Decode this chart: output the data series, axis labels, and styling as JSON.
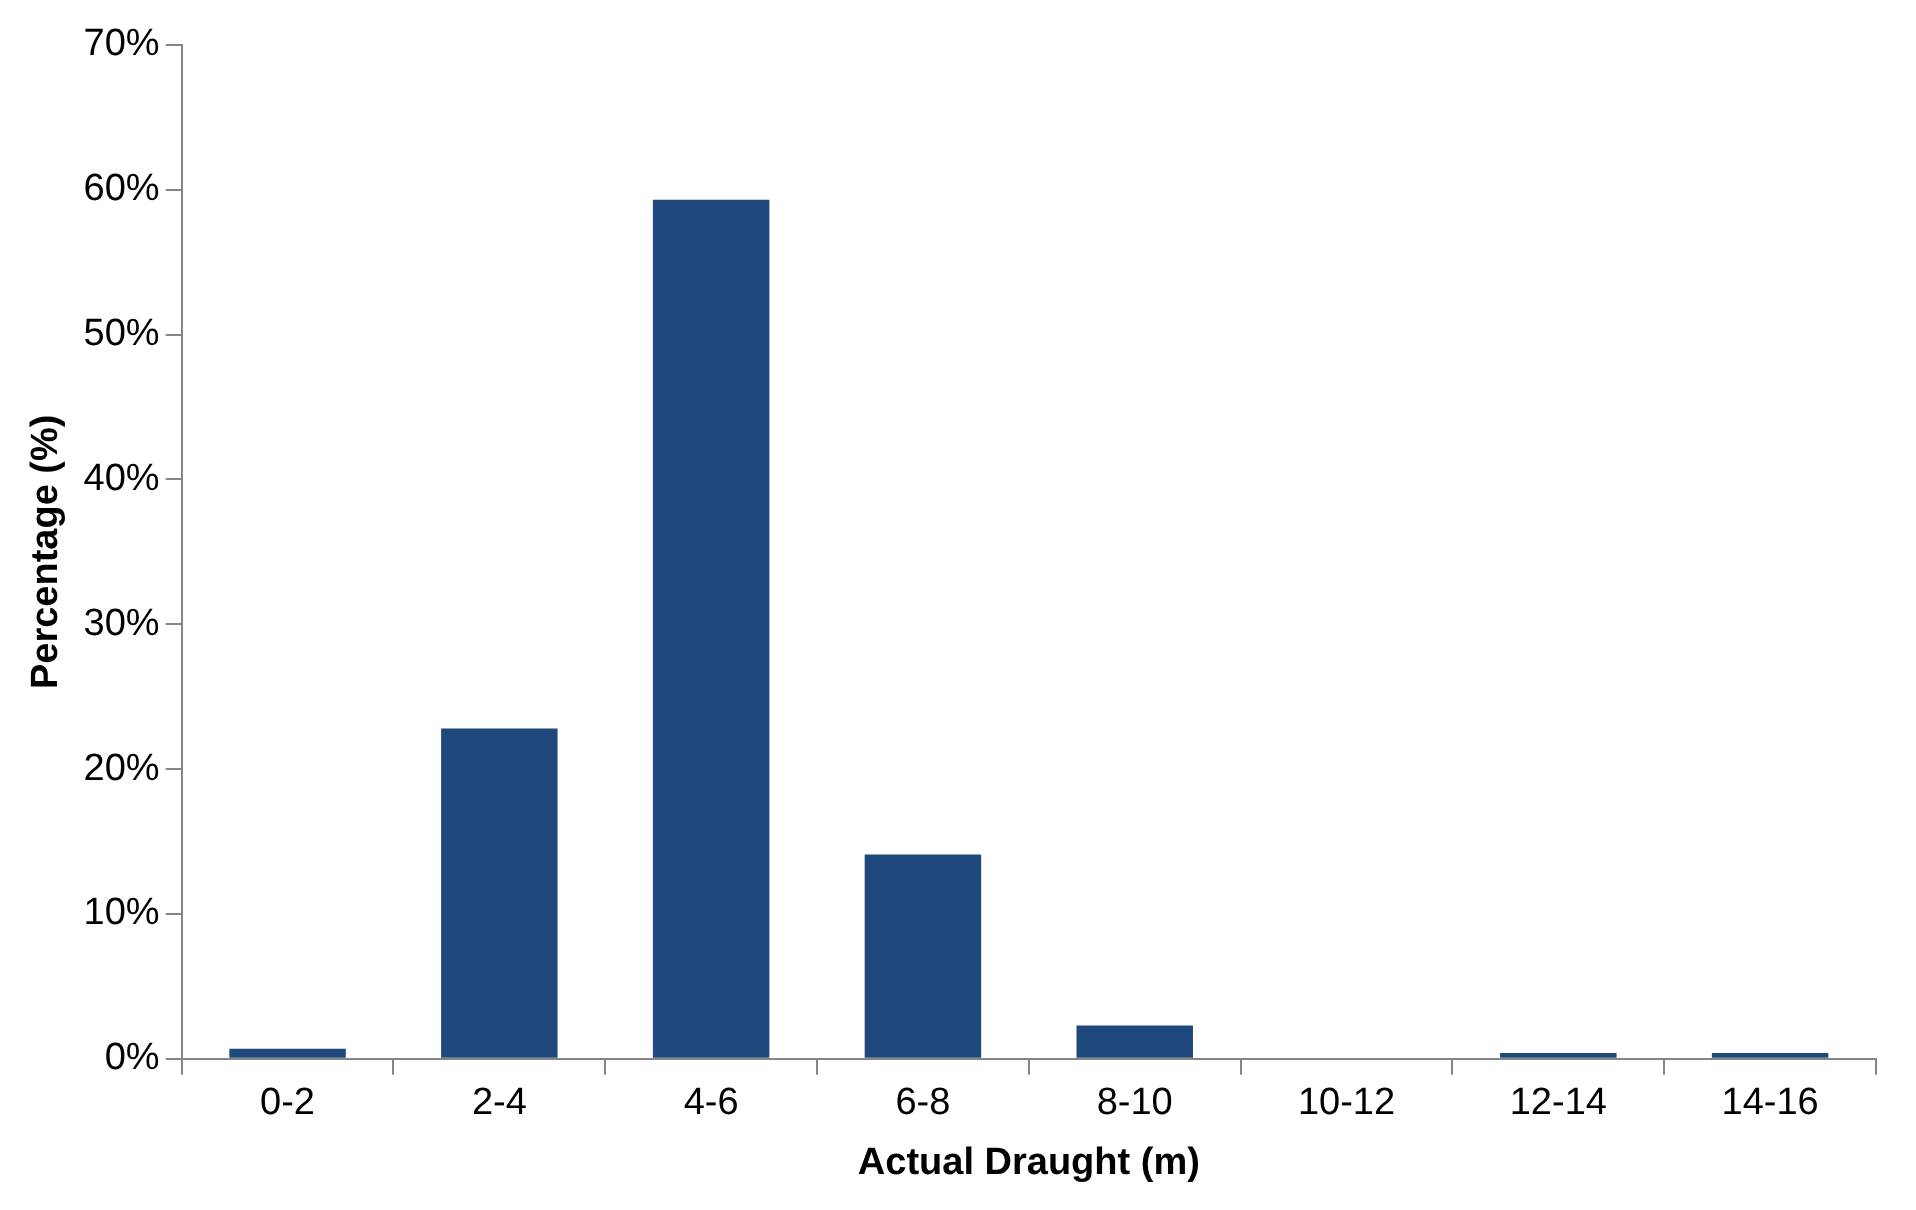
{
  "chart_data": {
    "type": "bar",
    "xlabel": "Actual Draught (m)",
    "ylabel": "Percentage (%)",
    "categories": [
      "0-2",
      "2-4",
      "4-6",
      "6-8",
      "8-10",
      "10-12",
      "12-14",
      "14-16"
    ],
    "values": [
      0.7,
      22.8,
      59.3,
      14.1,
      2.3,
      0,
      0.4,
      0.4
    ],
    "color": "#1f497d",
    "ylim": [
      0,
      70
    ],
    "yticks": [
      {
        "value": 0,
        "label": "0%"
      },
      {
        "value": 10,
        "label": "10%"
      },
      {
        "value": 20,
        "label": "20%"
      },
      {
        "value": 30,
        "label": "30%"
      },
      {
        "value": 40,
        "label": "40%"
      },
      {
        "value": 50,
        "label": "50%"
      },
      {
        "value": 60,
        "label": "60%"
      },
      {
        "value": 70,
        "label": "70%"
      }
    ],
    "grid": false,
    "legend": false
  }
}
